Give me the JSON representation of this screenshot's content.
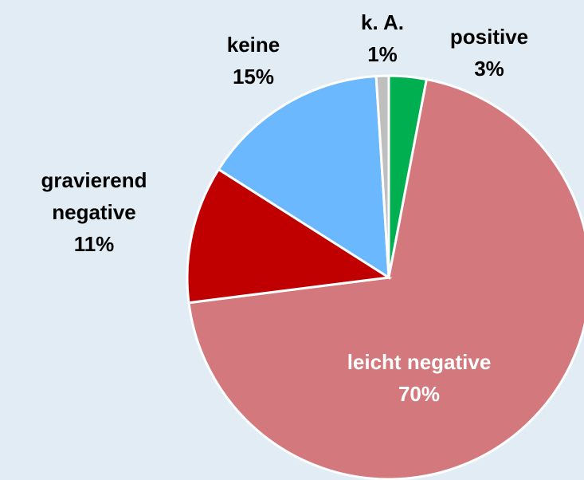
{
  "chart_data": {
    "type": "pie",
    "categories": [
      "positive",
      "leicht negative",
      "gravierend negative",
      "keine",
      "k. A."
    ],
    "values": [
      3,
      70,
      11,
      15,
      1
    ],
    "value_labels": [
      "3%",
      "70%",
      "11%",
      "15%",
      "1%"
    ],
    "colors": [
      "#00b050",
      "#d3787c",
      "#c00000",
      "#6bb8ff",
      "#bfbfbf"
    ],
    "label_colors": [
      "#000000",
      "#ffffff",
      "#000000",
      "#000000",
      "#000000"
    ]
  }
}
